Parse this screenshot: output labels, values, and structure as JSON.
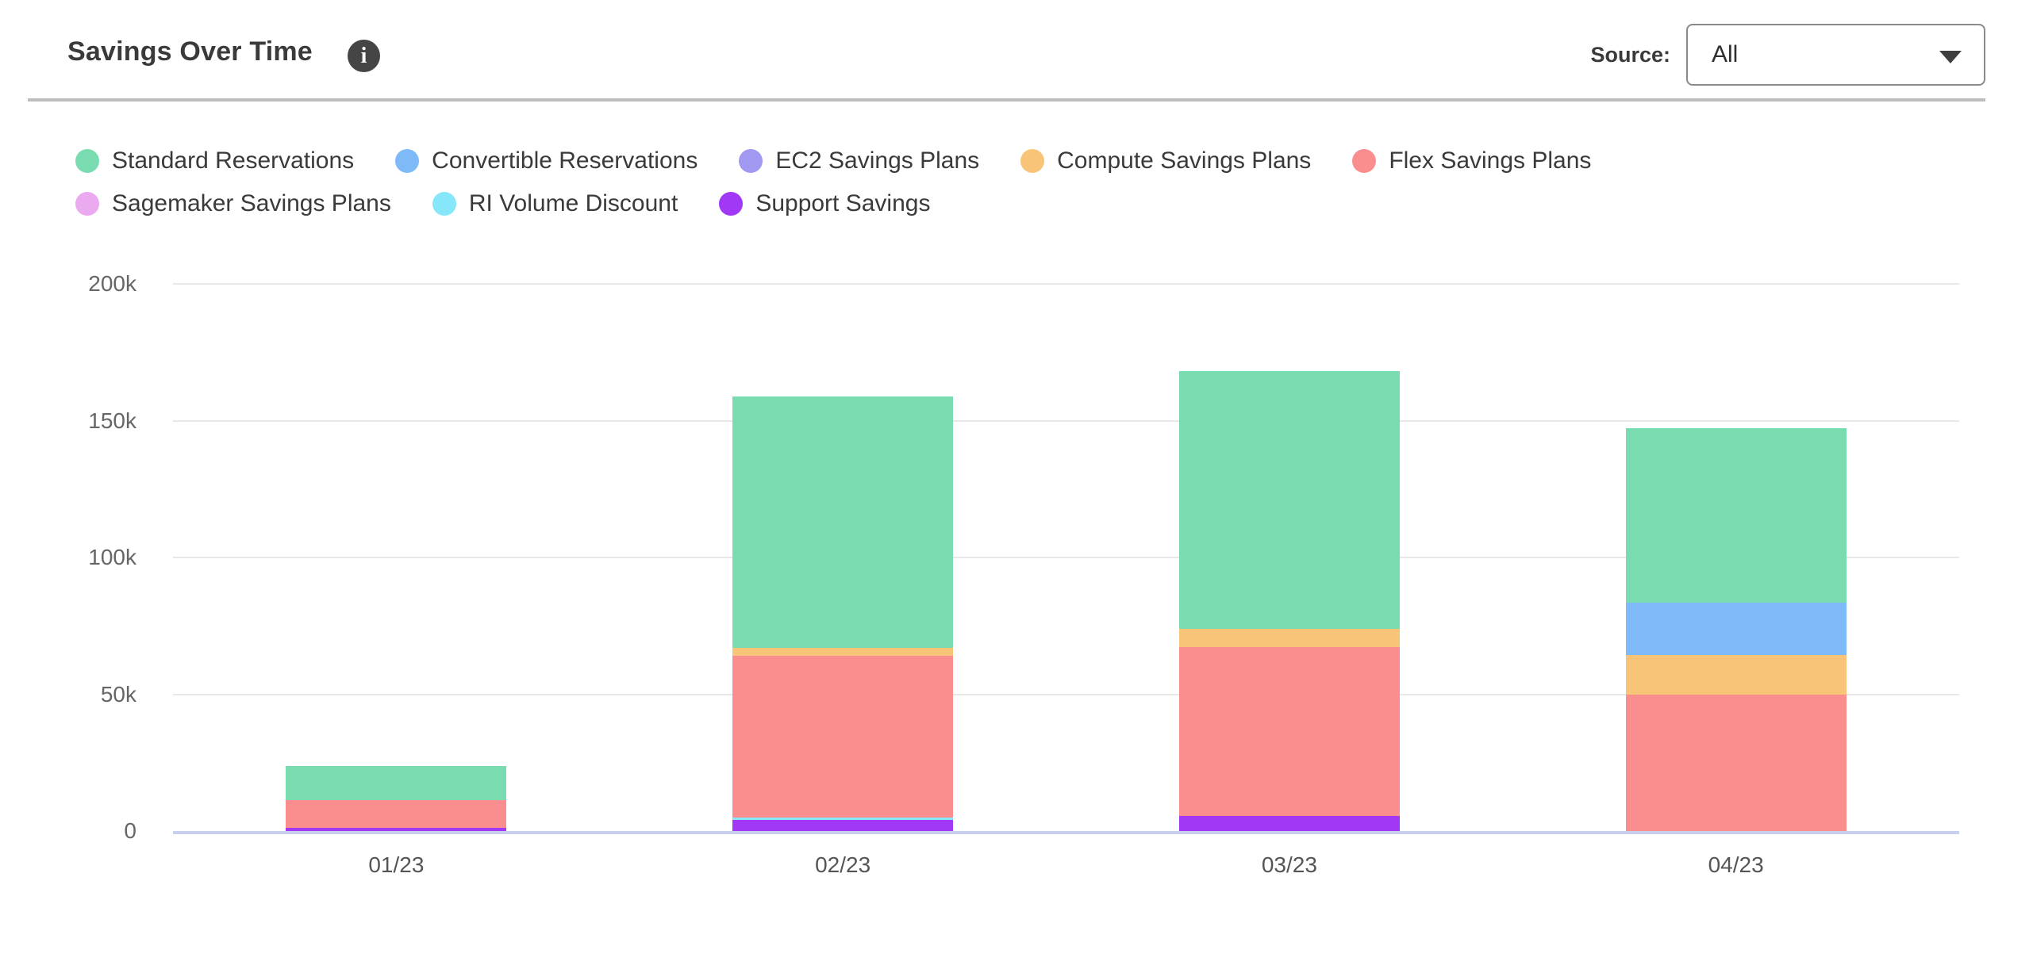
{
  "header": {
    "title": "Savings Over Time",
    "info_icon_glyph": "i",
    "source_label": "Source:",
    "source_selected": "All"
  },
  "chart_data": {
    "type": "bar",
    "stacked": true,
    "title": "Savings Over Time",
    "categories": [
      "01/23",
      "02/23",
      "03/23",
      "04/23"
    ],
    "series": [
      {
        "name": "Standard Reservations",
        "color": "#79dcb1",
        "values": [
          12300,
          91800,
          94200,
          63600
        ]
      },
      {
        "name": "Convertible Reservations",
        "color": "#7eb9f8",
        "values": [
          0,
          0,
          0,
          19200
        ]
      },
      {
        "name": "EC2 Savings Plans",
        "color": "#a198f2",
        "values": [
          0,
          0,
          0,
          0
        ]
      },
      {
        "name": "Compute Savings Plans",
        "color": "#f8c478",
        "values": [
          0,
          2900,
          6500,
          14500
        ]
      },
      {
        "name": "Flex Savings Plans",
        "color": "#fa8d8d",
        "values": [
          10200,
          59000,
          61800,
          49900
        ]
      },
      {
        "name": "Sagemaker Savings Plans",
        "color": "#eba9ef",
        "values": [
          0,
          0,
          0,
          0
        ]
      },
      {
        "name": "RI Volume Discount",
        "color": "#87e7fa",
        "values": [
          0,
          900,
          0,
          0
        ]
      },
      {
        "name": "Support Savings",
        "color": "#a138f6",
        "values": [
          1200,
          4100,
          5500,
          0
        ]
      }
    ],
    "stack_order_bottom_to_top": [
      "Support Savings",
      "RI Volume Discount",
      "Sagemaker Savings Plans",
      "Flex Savings Plans",
      "Compute Savings Plans",
      "EC2 Savings Plans",
      "Convertible Reservations",
      "Standard Reservations"
    ],
    "y_axis": {
      "ticks": [
        "0",
        "50k",
        "100k",
        "150k",
        "200k"
      ],
      "tick_values": [
        0,
        50000,
        100000,
        150000,
        200000
      ],
      "max": 200000
    },
    "grid": true,
    "legend_position": "top-left",
    "colors": {
      "gridline": "#e8e8e8",
      "baseline": "#c9cfec"
    }
  }
}
